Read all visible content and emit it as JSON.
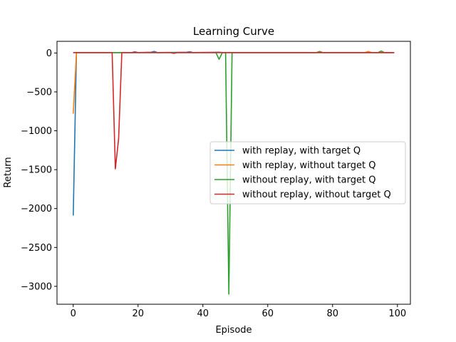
{
  "chart_data": {
    "type": "line",
    "title": "Learning Curve",
    "xlabel": "Episode",
    "ylabel": "Return",
    "xlim": [
      -5,
      104
    ],
    "ylim": [
      -3230,
      150
    ],
    "xticks": [
      0,
      20,
      40,
      60,
      80,
      100
    ],
    "yticks": [
      0,
      -500,
      -1000,
      -1500,
      -2000,
      -2500,
      -3000
    ],
    "xtick_labels": [
      "0",
      "20",
      "40",
      "60",
      "80",
      "100"
    ],
    "ytick_labels": [
      "0",
      "−500",
      "−1000",
      "−1500",
      "−2000",
      "−2500",
      "−3000"
    ],
    "grid": false,
    "legend_position": "center-right",
    "series": [
      {
        "name": "with replay, with target Q",
        "color": "#1f77b4",
        "points": [
          [
            0,
            -2090
          ],
          [
            1,
            5
          ],
          [
            2,
            5
          ],
          [
            10,
            5
          ],
          [
            18,
            5
          ],
          [
            19,
            15
          ],
          [
            20,
            5
          ],
          [
            24,
            10
          ],
          [
            25,
            20
          ],
          [
            26,
            5
          ],
          [
            35,
            10
          ],
          [
            36,
            15
          ],
          [
            37,
            5
          ],
          [
            45,
            10
          ],
          [
            46,
            5
          ],
          [
            99,
            5
          ]
        ]
      },
      {
        "name": "with replay, without target Q",
        "color": "#ff7f0e",
        "points": [
          [
            0,
            -780
          ],
          [
            1,
            5
          ],
          [
            2,
            5
          ],
          [
            10,
            5
          ],
          [
            90,
            5
          ],
          [
            91,
            20
          ],
          [
            92,
            5
          ],
          [
            99,
            5
          ]
        ]
      },
      {
        "name": "without replay, with target Q",
        "color": "#2ca02c",
        "points": [
          [
            0,
            5
          ],
          [
            30,
            5
          ],
          [
            44,
            5
          ],
          [
            45,
            -80
          ],
          [
            46,
            5
          ],
          [
            47,
            5
          ],
          [
            48,
            -3100
          ],
          [
            49,
            5
          ],
          [
            50,
            5
          ],
          [
            75,
            5
          ],
          [
            76,
            20
          ],
          [
            77,
            5
          ],
          [
            94,
            5
          ],
          [
            95,
            25
          ],
          [
            96,
            5
          ],
          [
            99,
            5
          ]
        ]
      },
      {
        "name": "without replay, without target Q",
        "color": "#d62728",
        "points": [
          [
            0,
            5
          ],
          [
            11,
            5
          ],
          [
            12,
            5
          ],
          [
            13,
            -1490
          ],
          [
            14,
            -1100
          ],
          [
            15,
            5
          ],
          [
            16,
            5
          ],
          [
            30,
            5
          ],
          [
            31,
            -5
          ],
          [
            32,
            5
          ],
          [
            98,
            5
          ],
          [
            99,
            5
          ]
        ]
      }
    ]
  }
}
